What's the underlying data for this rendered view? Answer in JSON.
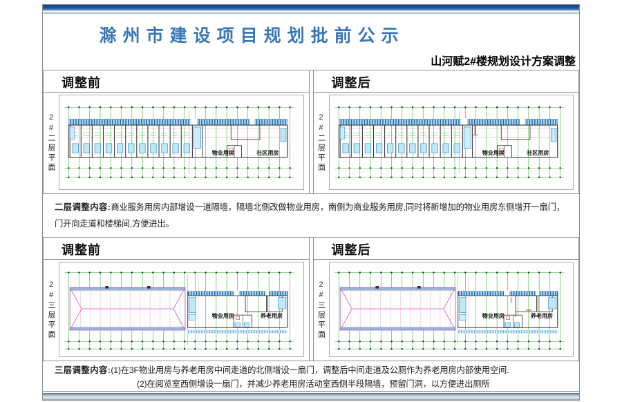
{
  "header": {
    "title": "滁州市建设项目规划批前公示",
    "subtitle": "山河赋2#楼规划设计方案调整"
  },
  "labels": {
    "before": "调整前",
    "after": "调整后"
  },
  "floor2": {
    "side_label": "2#二层平面",
    "room_labels": [
      "物业用房",
      "社区用房"
    ],
    "note_title": "二层调整内容:",
    "note_lines": [
      "商业服务用房内部增设一道隔墙，隔墙北侧改做物业用房，南侧为商业服务用房,同时将新增加的物业用房东侧增开一扇门，",
      "门开向走道和楼梯间,方便进出。"
    ]
  },
  "floor3": {
    "side_label": "2#三层平面",
    "room_labels": [
      "物业用房",
      "养老用房"
    ],
    "note_title": "三层调整内容:",
    "note_lines": [
      "(1)在3F物业用房与养老用房中间走道的北侧增设一扇门，调整后中间走道及公厕作为养老用房内部使用空间.",
      "(2)在阅览室西侧增设一扇门，并减少养老用房活动室西侧半段隔墙，预留门洞，以方便进出厕所"
    ]
  },
  "colors": {
    "title_blue": "#3a77b5",
    "banner_navy": "#1c5296",
    "grid_green": "#2db82d",
    "fixture_blue": "#2a85c8",
    "fixture_fill": "#bfe9f8",
    "roof_magenta": "#cf5fcf",
    "accent_red": "#dd2222",
    "wall_dark": "#333333"
  }
}
